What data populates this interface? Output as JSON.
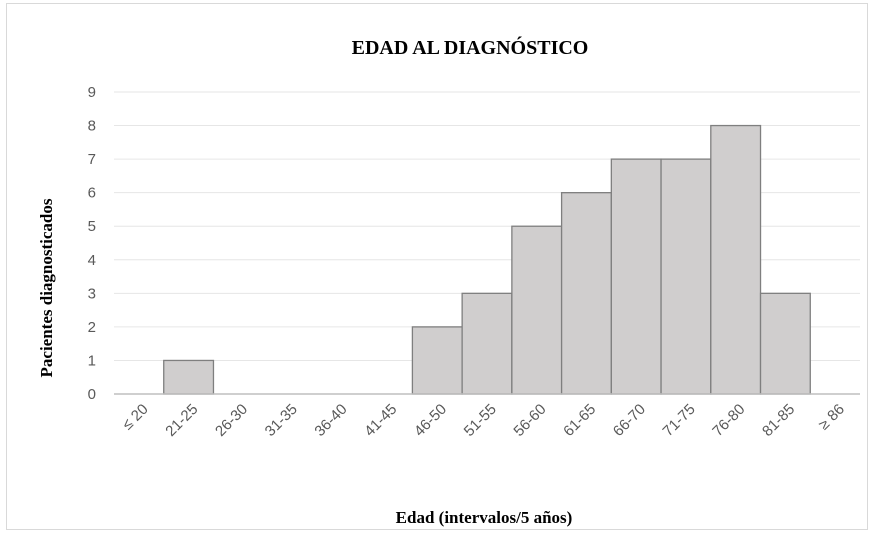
{
  "chart_data": {
    "type": "bar",
    "title": "EDAD AL DIAGNÓSTICO",
    "xlabel": "Edad (intervalos/5 años)",
    "ylabel": "Pacientes diagnosticados",
    "categories": [
      "≤ 20",
      "21-25",
      "26-30",
      "31-35",
      "36-40",
      "41-45",
      "46-50",
      "51-55",
      "56-60",
      "61-65",
      "66-70",
      "71-75",
      "76-80",
      "81-85",
      "≥ 86"
    ],
    "values": [
      0,
      1,
      0,
      0,
      0,
      0,
      2,
      3,
      5,
      6,
      7,
      7,
      8,
      3,
      0
    ],
    "ylim": [
      0,
      9
    ],
    "yticks": [
      0,
      1,
      2,
      3,
      4,
      5,
      6,
      7,
      8,
      9
    ],
    "grid": true,
    "legend": "none",
    "colors": {
      "bar_fill": "#d0cece",
      "bar_stroke": "#7f7f7f",
      "grid": "#e6e6e6",
      "axis": "#bfbfbf"
    }
  }
}
